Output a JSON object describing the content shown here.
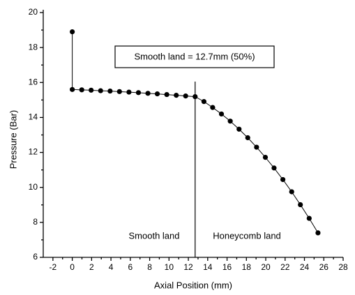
{
  "chart_data": {
    "type": "line",
    "xlabel": "Axial Position (mm)",
    "ylabel": "Pressure (Bar)",
    "annotations": [
      "Smooth land = 12.7mm (50%)",
      "Smooth land",
      "Honeycomb land"
    ],
    "x": [
      0,
      0,
      0.98,
      1.95,
      2.93,
      3.91,
      4.88,
      5.86,
      6.84,
      7.82,
      8.79,
      9.77,
      10.75,
      11.72,
      12.7,
      13.61,
      14.51,
      15.42,
      16.33,
      17.24,
      18.14,
      19.05,
      19.96,
      20.86,
      21.77,
      22.68,
      23.58,
      24.49,
      25.4
    ],
    "series": [
      {
        "color": "#000000",
        "values": [
          18.9,
          15.6,
          15.58,
          15.56,
          15.53,
          15.51,
          15.48,
          15.45,
          15.42,
          15.38,
          15.35,
          15.31,
          15.27,
          15.23,
          15.19,
          14.91,
          14.57,
          14.2,
          13.79,
          13.33,
          12.84,
          12.3,
          11.72,
          11.11,
          10.45,
          9.75,
          9.01,
          8.23,
          7.4
        ]
      }
    ],
    "xlim": [
      -3,
      28
    ],
    "xticks": [
      -2,
      0,
      2,
      4,
      6,
      8,
      10,
      12,
      14,
      16,
      18,
      20,
      22,
      24,
      26,
      28
    ],
    "ylim": [
      6,
      20
    ],
    "yticks": [
      6,
      8,
      10,
      12,
      14,
      16,
      18,
      20
    ],
    "grid": false
  }
}
